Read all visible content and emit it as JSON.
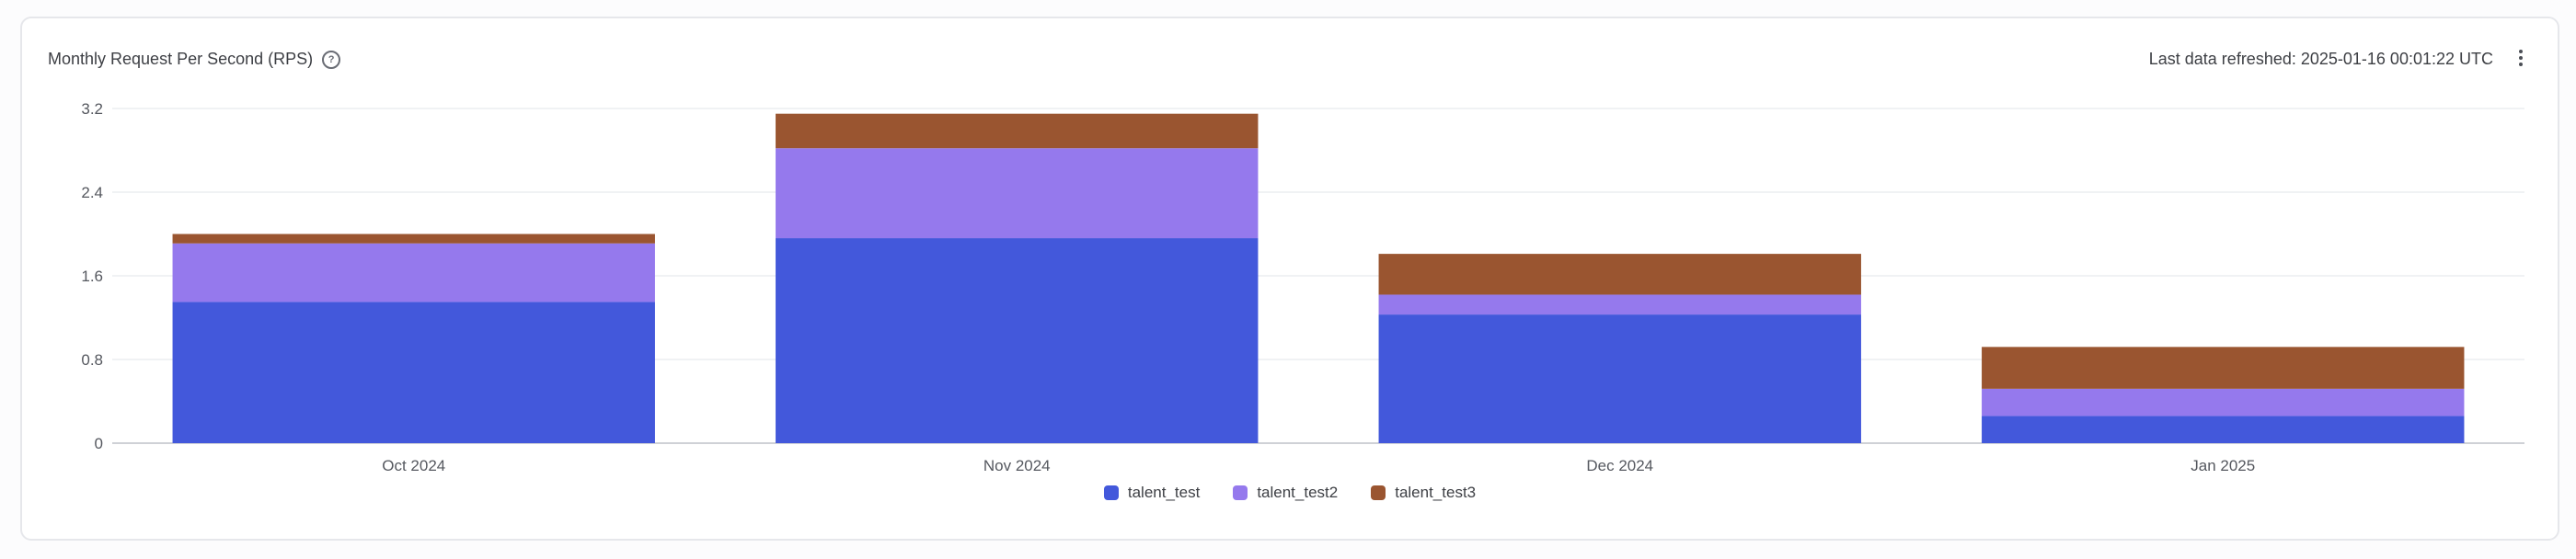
{
  "header": {
    "title": "Monthly Request Per Second (RPS)",
    "help_icon": "help-circle-icon",
    "refresh_text": "Last data refreshed: 2025-01-16 00:01:22 UTC",
    "more_icon": "more-vertical-icon"
  },
  "chart_data": {
    "type": "bar",
    "stacked": true,
    "title": "Monthly Request Per Second (RPS)",
    "categories": [
      "Oct 2024",
      "Nov 2024",
      "Dec 2024",
      "Jan 2025"
    ],
    "series": [
      {
        "name": "talent_test",
        "color": "#4358db",
        "values": [
          1.35,
          1.96,
          1.23,
          0.26
        ]
      },
      {
        "name": "talent_test2",
        "color": "#9579ed",
        "values": [
          0.56,
          0.86,
          0.19,
          0.26
        ]
      },
      {
        "name": "talent_test3",
        "color": "#9a5530",
        "values": [
          0.09,
          0.33,
          0.39,
          0.4
        ]
      }
    ],
    "yticks": [
      "0",
      "0.8",
      "1.6",
      "2.4",
      "3.2"
    ],
    "ylim": [
      0,
      3.2
    ],
    "grid": true,
    "legend": "bottom-center",
    "xlabel": "",
    "ylabel": ""
  }
}
